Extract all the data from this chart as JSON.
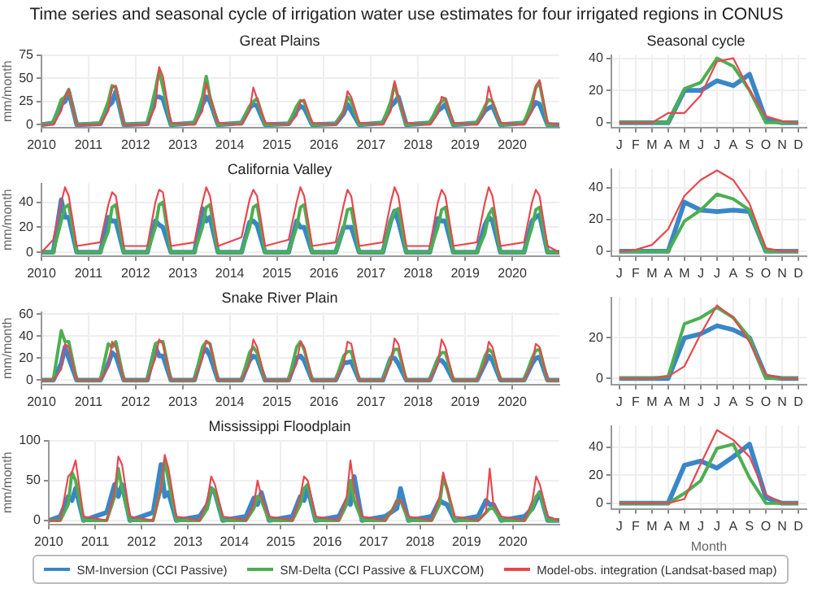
{
  "chart_data": [
    {
      "type": "line",
      "title": "Time series and seasonal cycle of irrigation water use estimates for four irrigated regions in CONUS",
      "subtitle": "Great Plains",
      "ylabel": "mm/month",
      "legend": "bottom",
      "grid": true,
      "marker": "none",
      "xlim": [
        2010,
        2021
      ],
      "xticks": [
        2010,
        2011,
        2012,
        2013,
        2014,
        2015,
        2016,
        2017,
        2018,
        2019,
        2020
      ],
      "ylim": [
        -3,
        75
      ],
      "yticks": [
        0,
        25,
        50,
        75
      ],
      "x": [
        2010,
        2010.25,
        2010.42,
        2010.5,
        2010.58,
        2010.75,
        2011.25,
        2011.42,
        2011.5,
        2011.58,
        2011.75,
        2012.25,
        2012.42,
        2012.5,
        2012.58,
        2012.75,
        2013.25,
        2013.42,
        2013.5,
        2013.58,
        2013.75,
        2014.25,
        2014.42,
        2014.5,
        2014.58,
        2014.75,
        2015.25,
        2015.42,
        2015.5,
        2015.58,
        2015.75,
        2016.25,
        2016.42,
        2016.5,
        2016.58,
        2016.75,
        2017.25,
        2017.42,
        2017.5,
        2017.58,
        2017.75,
        2018.25,
        2018.42,
        2018.5,
        2018.58,
        2018.75,
        2019.25,
        2019.42,
        2019.5,
        2019.58,
        2019.75,
        2020.25,
        2020.42,
        2020.5,
        2020.58,
        2020.75,
        2021
      ],
      "series": [
        {
          "name": "SM-Inversion (CCI Passive)",
          "color": "#3a86c8",
          "values": [
            0,
            2,
            22,
            25,
            35,
            0,
            1,
            20,
            24,
            36,
            0,
            1,
            30,
            30,
            28,
            0,
            2,
            22,
            30,
            25,
            0,
            2,
            18,
            22,
            20,
            0,
            1,
            15,
            20,
            18,
            0,
            1,
            12,
            22,
            15,
            0,
            2,
            20,
            24,
            30,
            0,
            2,
            15,
            18,
            22,
            0,
            2,
            15,
            18,
            20,
            0,
            2,
            18,
            24,
            22,
            0,
            0
          ]
        },
        {
          "name": "SM-Delta (CCI Passive & FLUXCOM)",
          "color": "#4caf50",
          "values": [
            0,
            2,
            27,
            30,
            38,
            0,
            2,
            25,
            42,
            40,
            0,
            1,
            38,
            58,
            40,
            0,
            2,
            30,
            52,
            30,
            0,
            2,
            20,
            25,
            28,
            0,
            1,
            20,
            26,
            25,
            0,
            1,
            15,
            30,
            25,
            0,
            2,
            25,
            44,
            28,
            0,
            2,
            20,
            25,
            28,
            0,
            2,
            20,
            27,
            25,
            0,
            2,
            25,
            40,
            45,
            0,
            0
          ]
        },
        {
          "name": "Model-obs. integration (Landsat-based map)",
          "color": "#e8474f",
          "values": [
            0,
            0,
            15,
            30,
            38,
            0,
            0,
            15,
            40,
            42,
            0,
            0,
            20,
            62,
            52,
            2,
            0,
            15,
            45,
            30,
            2,
            0,
            15,
            40,
            28,
            2,
            0,
            10,
            25,
            27,
            2,
            0,
            12,
            36,
            30,
            2,
            0,
            15,
            47,
            30,
            2,
            0,
            12,
            30,
            28,
            2,
            0,
            15,
            41,
            25,
            2,
            0,
            15,
            42,
            48,
            2,
            0
          ]
        }
      ]
    },
    {
      "type": "line",
      "title": "Seasonal cycle",
      "grid": true,
      "marker": "none",
      "categories": [
        "J",
        "F",
        "M",
        "A",
        "M",
        "J",
        "J",
        "A",
        "S",
        "O",
        "N",
        "D"
      ],
      "ylim": [
        -3,
        42
      ],
      "yticks": [
        0,
        20,
        40
      ],
      "series": [
        {
          "color": "#3a86c8",
          "values": [
            0,
            0,
            0,
            0,
            20,
            20,
            26,
            23,
            30,
            2,
            0,
            0
          ]
        },
        {
          "color": "#4caf50",
          "values": [
            0,
            0,
            0,
            0,
            21,
            25,
            40,
            35,
            20,
            0,
            0,
            0
          ]
        },
        {
          "color": "#e8474f",
          "values": [
            0,
            0,
            0,
            6,
            6,
            17,
            38,
            40,
            20,
            4,
            1,
            0
          ]
        }
      ]
    },
    {
      "type": "line",
      "title": "California Valley",
      "ylabel": "mm/month",
      "grid": true,
      "marker": "none",
      "xlim": [
        2010,
        2021
      ],
      "xticks": [
        2010,
        2011,
        2012,
        2013,
        2014,
        2015,
        2016,
        2017,
        2018,
        2019,
        2020
      ],
      "ylim": [
        -3,
        55
      ],
      "yticks": [
        0,
        20,
        40
      ],
      "x": [
        2010,
        2010.25,
        2010.42,
        2010.5,
        2010.58,
        2010.75,
        2011.25,
        2011.42,
        2011.5,
        2011.58,
        2011.75,
        2012.25,
        2012.42,
        2012.5,
        2012.58,
        2012.75,
        2013.25,
        2013.42,
        2013.5,
        2013.58,
        2013.75,
        2014.25,
        2014.42,
        2014.5,
        2014.58,
        2014.75,
        2015.25,
        2015.42,
        2015.5,
        2015.58,
        2015.75,
        2016.25,
        2016.42,
        2016.5,
        2016.58,
        2016.75,
        2017.25,
        2017.42,
        2017.5,
        2017.58,
        2017.75,
        2018.25,
        2018.42,
        2018.5,
        2018.58,
        2018.75,
        2019.25,
        2019.42,
        2019.5,
        2019.58,
        2019.75,
        2020.25,
        2020.42,
        2020.5,
        2020.58,
        2020.75,
        2021
      ],
      "series": [
        {
          "color": "#3a86c8",
          "values": [
            0,
            0,
            42,
            28,
            28,
            0,
            0,
            28,
            25,
            25,
            0,
            0,
            25,
            22,
            20,
            0,
            0,
            35,
            25,
            28,
            0,
            0,
            24,
            25,
            22,
            0,
            0,
            25,
            20,
            20,
            0,
            0,
            20,
            20,
            20,
            0,
            0,
            25,
            33,
            25,
            0,
            0,
            27,
            25,
            25,
            0,
            0,
            22,
            28,
            25,
            0,
            0,
            25,
            28,
            30,
            0,
            0
          ]
        },
        {
          "color": "#4caf50",
          "values": [
            0,
            0,
            25,
            36,
            38,
            0,
            0,
            17,
            36,
            38,
            0,
            0,
            20,
            38,
            40,
            0,
            0,
            20,
            36,
            38,
            0,
            0,
            20,
            36,
            38,
            0,
            0,
            20,
            36,
            38,
            0,
            0,
            20,
            34,
            35,
            0,
            0,
            25,
            33,
            35,
            0,
            0,
            20,
            34,
            36,
            0,
            0,
            15,
            30,
            35,
            0,
            0,
            20,
            34,
            36,
            0,
            0
          ]
        },
        {
          "color": "#e8474f",
          "values": [
            0,
            10,
            40,
            52,
            45,
            5,
            8,
            38,
            48,
            45,
            5,
            5,
            40,
            50,
            48,
            5,
            8,
            40,
            52,
            45,
            5,
            12,
            42,
            50,
            45,
            5,
            10,
            40,
            52,
            45,
            5,
            8,
            38,
            50,
            45,
            5,
            8,
            40,
            52,
            45,
            5,
            5,
            40,
            50,
            45,
            5,
            8,
            40,
            52,
            45,
            5,
            8,
            40,
            50,
            45,
            5,
            0
          ]
        }
      ]
    },
    {
      "type": "line",
      "grid": true,
      "marker": "none",
      "categories": [
        "J",
        "F",
        "M",
        "A",
        "M",
        "J",
        "J",
        "A",
        "S",
        "O",
        "N",
        "D"
      ],
      "ylim": [
        -3,
        52
      ],
      "yticks": [
        0,
        20,
        40
      ],
      "series": [
        {
          "color": "#3a86c8",
          "values": [
            0,
            0,
            0,
            0,
            31,
            26,
            25,
            26,
            25,
            0,
            0,
            0
          ]
        },
        {
          "color": "#4caf50",
          "values": [
            0,
            0,
            0,
            0,
            19,
            26,
            36,
            33,
            26,
            0,
            0,
            0
          ]
        },
        {
          "color": "#e8474f",
          "values": [
            0,
            1,
            4,
            14,
            35,
            45,
            51,
            45,
            30,
            2,
            0,
            0
          ]
        }
      ]
    },
    {
      "type": "line",
      "title": "Snake River Plain",
      "ylabel": "mm/month",
      "grid": true,
      "marker": "none",
      "xlim": [
        2010,
        2021
      ],
      "xticks": [
        2010,
        2011,
        2012,
        2013,
        2014,
        2015,
        2016,
        2017,
        2018,
        2019,
        2020
      ],
      "ylim": [
        -4,
        62
      ],
      "yticks": [
        0,
        20,
        40,
        60
      ],
      "x": [
        2010,
        2010.25,
        2010.42,
        2010.5,
        2010.58,
        2010.75,
        2011.25,
        2011.42,
        2011.5,
        2011.58,
        2011.75,
        2012.25,
        2012.42,
        2012.5,
        2012.58,
        2012.75,
        2013.25,
        2013.42,
        2013.5,
        2013.58,
        2013.75,
        2014.25,
        2014.42,
        2014.5,
        2014.58,
        2014.75,
        2015.25,
        2015.42,
        2015.5,
        2015.58,
        2015.75,
        2016.25,
        2016.42,
        2016.5,
        2016.58,
        2016.75,
        2017.25,
        2017.42,
        2017.5,
        2017.58,
        2017.75,
        2018.25,
        2018.42,
        2018.5,
        2018.58,
        2018.75,
        2019.25,
        2019.42,
        2019.5,
        2019.58,
        2019.75,
        2020.25,
        2020.42,
        2020.5,
        2020.58,
        2020.75,
        2021
      ],
      "series": [
        {
          "color": "#3a86c8",
          "values": [
            0,
            0,
            15,
            30,
            20,
            0,
            0,
            15,
            25,
            22,
            0,
            0,
            30,
            22,
            22,
            0,
            0,
            25,
            28,
            22,
            0,
            0,
            18,
            22,
            20,
            0,
            0,
            20,
            22,
            18,
            0,
            0,
            16,
            16,
            17,
            0,
            0,
            20,
            20,
            15,
            0,
            0,
            18,
            18,
            14,
            0,
            0,
            15,
            22,
            18,
            0,
            0,
            15,
            20,
            21,
            0,
            0
          ]
        },
        {
          "color": "#4caf50",
          "values": [
            0,
            0,
            45,
            35,
            35,
            0,
            0,
            33,
            30,
            35,
            0,
            0,
            33,
            35,
            35,
            0,
            0,
            30,
            35,
            33,
            0,
            0,
            25,
            30,
            25,
            0,
            0,
            30,
            35,
            28,
            0,
            0,
            22,
            26,
            26,
            0,
            0,
            20,
            28,
            28,
            0,
            0,
            20,
            25,
            25,
            0,
            0,
            22,
            28,
            25,
            0,
            0,
            20,
            27,
            28,
            0,
            0
          ]
        },
        {
          "color": "#e8474f",
          "values": [
            0,
            0,
            10,
            33,
            30,
            0,
            0,
            12,
            35,
            30,
            0,
            0,
            20,
            37,
            33,
            0,
            0,
            20,
            36,
            33,
            0,
            0,
            15,
            37,
            30,
            0,
            0,
            15,
            35,
            30,
            0,
            0,
            15,
            35,
            33,
            0,
            0,
            15,
            38,
            33,
            0,
            0,
            15,
            37,
            30,
            0,
            0,
            15,
            35,
            30,
            0,
            0,
            15,
            33,
            30,
            0,
            0
          ]
        }
      ]
    },
    {
      "type": "line",
      "grid": true,
      "marker": "none",
      "categories": [
        "J",
        "F",
        "M",
        "A",
        "M",
        "J",
        "J",
        "A",
        "S",
        "O",
        "N",
        "D"
      ],
      "ylim": [
        -3,
        40
      ],
      "yticks": [
        0,
        20
      ],
      "series": [
        {
          "color": "#3a86c8",
          "values": [
            0,
            0,
            0,
            0,
            20,
            22,
            26,
            24,
            20,
            1,
            0,
            0
          ]
        },
        {
          "color": "#4caf50",
          "values": [
            0,
            0,
            0,
            1,
            27,
            30,
            35,
            30,
            20,
            0,
            0,
            0
          ]
        },
        {
          "color": "#e8474f",
          "values": [
            0,
            0,
            0,
            1,
            6,
            22,
            36,
            30,
            18,
            2,
            0,
            0
          ]
        }
      ]
    },
    {
      "type": "line",
      "title": "Mississippi Floodplain",
      "ylabel": "mm/month",
      "grid": true,
      "marker": "none",
      "xlim": [
        2010,
        2021
      ],
      "xticks": [
        2010,
        2011,
        2012,
        2013,
        2014,
        2015,
        2016,
        2017,
        2018,
        2019,
        2020
      ],
      "ylim": [
        -5,
        100
      ],
      "yticks": [
        0,
        50,
        100
      ],
      "x": [
        2010,
        2010.25,
        2010.42,
        2010.5,
        2010.58,
        2010.75,
        2011.25,
        2011.42,
        2011.5,
        2011.58,
        2011.75,
        2012.25,
        2012.42,
        2012.5,
        2012.58,
        2012.75,
        2013.25,
        2013.42,
        2013.5,
        2013.58,
        2013.75,
        2014.25,
        2014.42,
        2014.5,
        2014.58,
        2014.75,
        2015.25,
        2015.42,
        2015.5,
        2015.58,
        2015.75,
        2016.25,
        2016.42,
        2016.5,
        2016.58,
        2016.75,
        2017.25,
        2017.42,
        2017.5,
        2017.58,
        2017.75,
        2018.25,
        2018.42,
        2018.5,
        2018.58,
        2018.75,
        2019.25,
        2019.42,
        2019.5,
        2019.58,
        2019.75,
        2020.25,
        2020.42,
        2020.5,
        2020.58,
        2020.75,
        2021
      ],
      "series": [
        {
          "color": "#3a86c8",
          "values": [
            0,
            5,
            30,
            25,
            40,
            0,
            10,
            45,
            30,
            45,
            0,
            10,
            70,
            30,
            35,
            0,
            5,
            20,
            40,
            35,
            0,
            5,
            28,
            20,
            35,
            0,
            5,
            30,
            25,
            40,
            0,
            5,
            25,
            20,
            55,
            0,
            5,
            12,
            15,
            40,
            0,
            5,
            25,
            22,
            20,
            0,
            5,
            25,
            20,
            20,
            0,
            5,
            15,
            25,
            35,
            0,
            0
          ]
        },
        {
          "color": "#4caf50",
          "values": [
            0,
            0,
            20,
            60,
            50,
            0,
            0,
            30,
            65,
            40,
            0,
            0,
            40,
            75,
            50,
            0,
            0,
            15,
            40,
            35,
            0,
            0,
            15,
            30,
            25,
            0,
            0,
            20,
            40,
            45,
            0,
            0,
            20,
            50,
            25,
            0,
            0,
            15,
            25,
            25,
            0,
            0,
            20,
            55,
            40,
            0,
            0,
            10,
            15,
            15,
            0,
            0,
            15,
            30,
            35,
            0,
            0
          ]
        },
        {
          "color": "#e8474f",
          "values": [
            0,
            0,
            55,
            60,
            75,
            5,
            0,
            35,
            80,
            70,
            5,
            0,
            40,
            82,
            65,
            5,
            0,
            25,
            55,
            45,
            5,
            0,
            20,
            50,
            30,
            5,
            0,
            30,
            55,
            50,
            5,
            0,
            30,
            75,
            40,
            5,
            0,
            15,
            25,
            25,
            5,
            0,
            30,
            60,
            40,
            5,
            0,
            10,
            65,
            20,
            5,
            0,
            25,
            55,
            45,
            5,
            0
          ]
        }
      ]
    },
    {
      "type": "line",
      "xlabel": "Month",
      "grid": true,
      "marker": "none",
      "categories": [
        "J",
        "F",
        "M",
        "A",
        "M",
        "J",
        "J",
        "A",
        "S",
        "O",
        "N",
        "D"
      ],
      "ylim": [
        -4,
        55
      ],
      "yticks": [
        0,
        20,
        40
      ],
      "series": [
        {
          "color": "#3a86c8",
          "values": [
            0,
            0,
            0,
            0,
            27,
            30,
            25,
            33,
            42,
            4,
            0,
            0
          ]
        },
        {
          "color": "#4caf50",
          "values": [
            0,
            0,
            0,
            0,
            7,
            16,
            39,
            42,
            18,
            0,
            0,
            0
          ]
        },
        {
          "color": "#e8474f",
          "values": [
            0,
            0,
            0,
            0,
            3,
            28,
            52,
            45,
            33,
            6,
            0,
            0
          ]
        }
      ]
    }
  ]
}
